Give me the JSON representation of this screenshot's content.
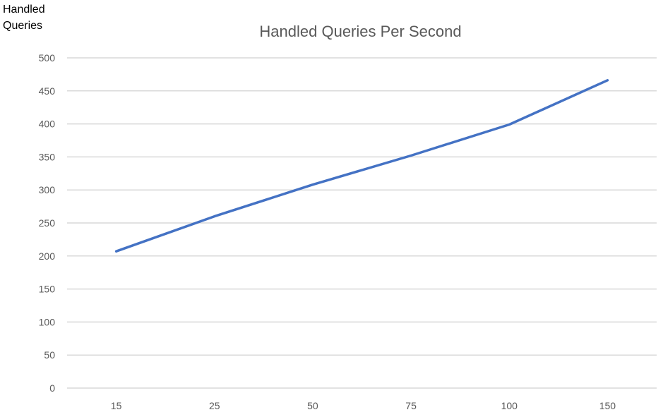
{
  "chart_data": {
    "type": "line",
    "title": "Handled Queries Per Second",
    "ylabel": "Handled Queries",
    "xlabel": "",
    "categories": [
      "15",
      "25",
      "50",
      "75",
      "100",
      "150"
    ],
    "series": [
      {
        "values": [
          207,
          260,
          308,
          352,
          399,
          466
        ]
      }
    ],
    "ylim": [
      0,
      500
    ],
    "yticks": [
      0,
      50,
      100,
      150,
      200,
      250,
      300,
      350,
      400,
      450,
      500
    ],
    "grid": true,
    "legend": "none",
    "line_color": "#4472C4",
    "grid_color": "#D9D9D9"
  }
}
